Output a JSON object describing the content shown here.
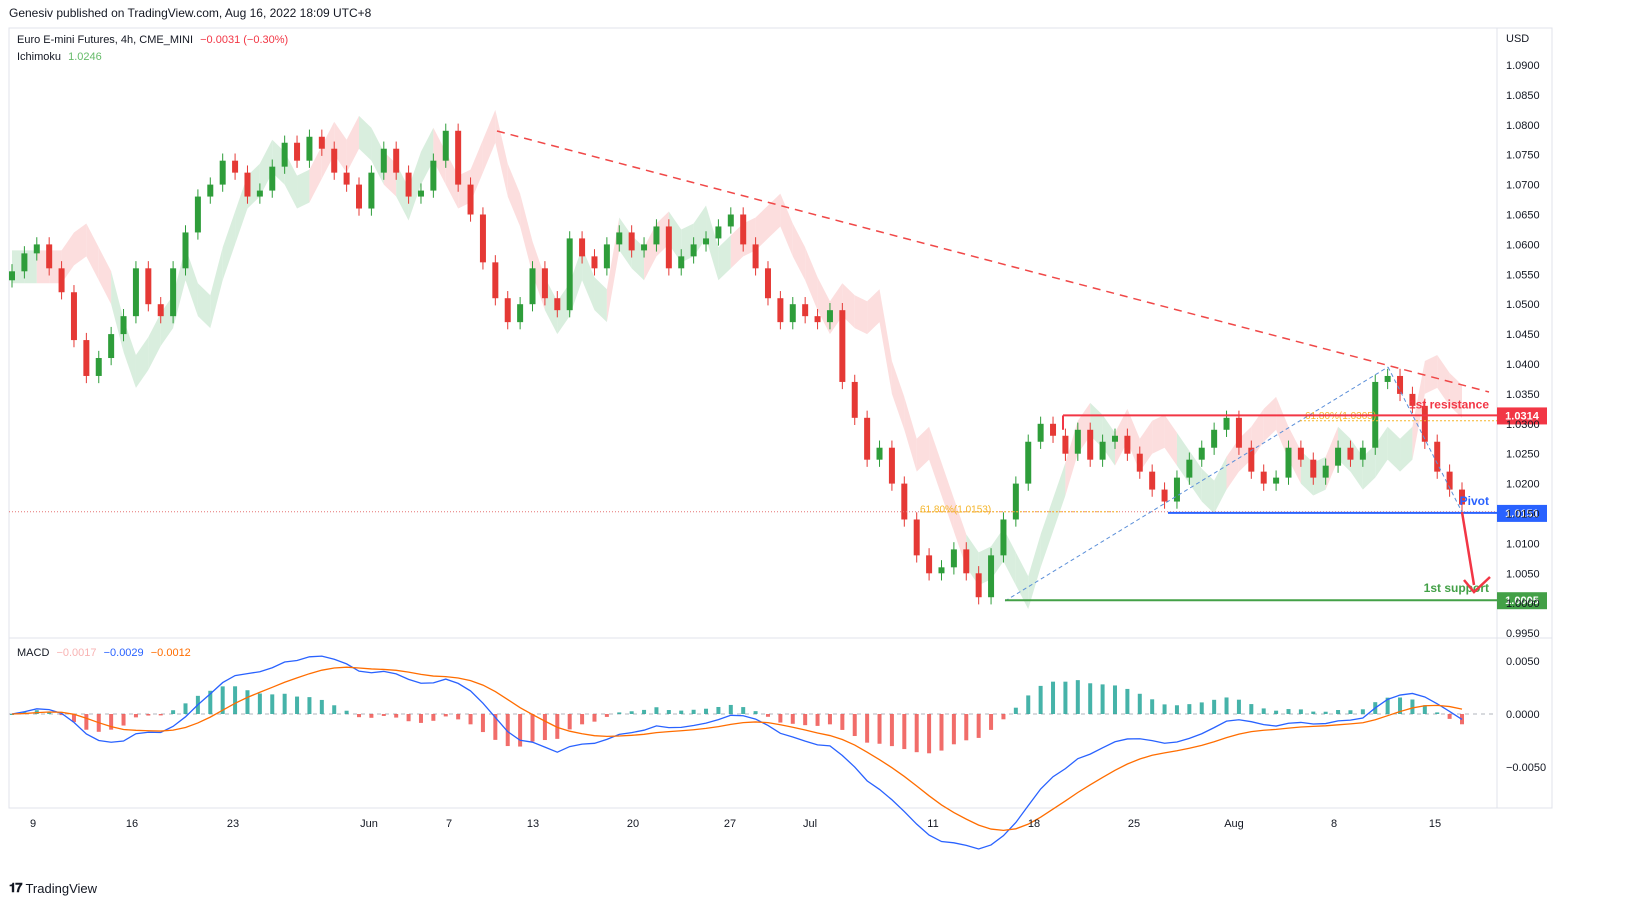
{
  "header": {
    "published_text": "Genesiv published on TradingView.com, Aug 16, 2022 18:09 UTC+8"
  },
  "legend": {
    "symbol_text": "Euro E-mini Futures, 4h, CME_MINI",
    "change": "−0.0031 (−0.30%)",
    "indicator_name": "Ichimoku",
    "indicator_value": "1.0246",
    "macd_name": "MACD",
    "macd_hist": "−0.0017",
    "macd_line": "−0.0029",
    "macd_signal": "−0.0012"
  },
  "footer": {
    "brand": "TradingView"
  },
  "colors": {
    "up": "#26a69a",
    "down": "#ef5350",
    "up_candle": "#2e9d3a",
    "down_candle": "#e53935",
    "trend": "#f04848",
    "fib": "#f5b52a",
    "macd": "#2962ff",
    "signal": "#ff6d00",
    "label_red": "#f23645",
    "label_blue": "#2962ff",
    "label_green": "#43a047",
    "cloud_green": "#cfead6",
    "cloud_red": "#fbd6d6"
  },
  "chart_data": {
    "type": "candlestick",
    "currency": "USD",
    "price_axis_ticks": [
      "1.0900",
      "1.0850",
      "1.0800",
      "1.0750",
      "1.0700",
      "1.0650",
      "1.0600",
      "1.0550",
      "1.0500",
      "1.0450",
      "1.0400",
      "1.0350",
      "1.0300",
      "1.0250",
      "1.0200",
      "1.0150",
      "1.0100",
      "1.0050",
      "1.0000",
      "0.9950"
    ],
    "macd_axis_ticks": [
      "0.0050",
      "0.0000",
      "−0.0050"
    ],
    "x_axis_labels": [
      "9",
      "16",
      "23",
      "Jun",
      "7",
      "13",
      "20",
      "27",
      "Jul",
      "11",
      "18",
      "25",
      "Aug",
      "8",
      "15"
    ],
    "price_closes_approx": [
      1.0555,
      1.0585,
      1.06,
      1.056,
      1.052,
      1.044,
      1.038,
      1.041,
      1.045,
      1.048,
      1.056,
      1.05,
      1.048,
      1.056,
      1.062,
      1.068,
      1.07,
      1.074,
      1.072,
      1.068,
      1.069,
      1.073,
      1.077,
      1.074,
      1.078,
      1.076,
      1.072,
      1.07,
      1.066,
      1.072,
      1.076,
      1.072,
      1.068,
      1.069,
      1.074,
      1.079,
      1.07,
      1.065,
      1.057,
      1.051,
      1.047,
      1.05,
      1.056,
      1.051,
      1.049,
      1.061,
      1.058,
      1.056,
      1.06,
      1.062,
      1.059,
      1.06,
      1.063,
      1.056,
      1.058,
      1.06,
      1.061,
      1.063,
      1.065,
      1.06,
      1.056,
      1.051,
      1.047,
      1.05,
      1.048,
      1.047,
      1.049,
      1.037,
      1.031,
      1.024,
      1.026,
      1.02,
      1.014,
      1.008,
      1.005,
      1.006,
      1.009,
      1.005,
      1.001,
      1.008,
      1.014,
      1.02,
      1.027,
      1.03,
      1.028,
      1.025,
      1.029,
      1.024,
      1.027,
      1.028,
      1.025,
      1.022,
      1.019,
      1.017,
      1.021,
      1.024,
      1.026,
      1.029,
      1.031,
      1.026,
      1.022,
      1.02,
      1.021,
      1.026,
      1.024,
      1.021,
      1.023,
      1.026,
      1.024,
      1.026,
      1.037,
      1.038,
      1.035,
      1.033,
      1.027,
      1.022,
      1.019,
      1.0165
    ],
    "annotations": {
      "resistance_label": "1st resistance",
      "resistance_price": "1.0314",
      "pivot_label": "Pivot",
      "pivot_price": "1.0151",
      "support_label": "1st support",
      "support_price": "1.0005",
      "fib_upper": "61.80%(1.0305)",
      "fib_lower": "61.80%(1.0153)"
    },
    "macd": {
      "histogram_color_pos": "#26a69a",
      "histogram_color_neg": "#ef5350"
    }
  }
}
